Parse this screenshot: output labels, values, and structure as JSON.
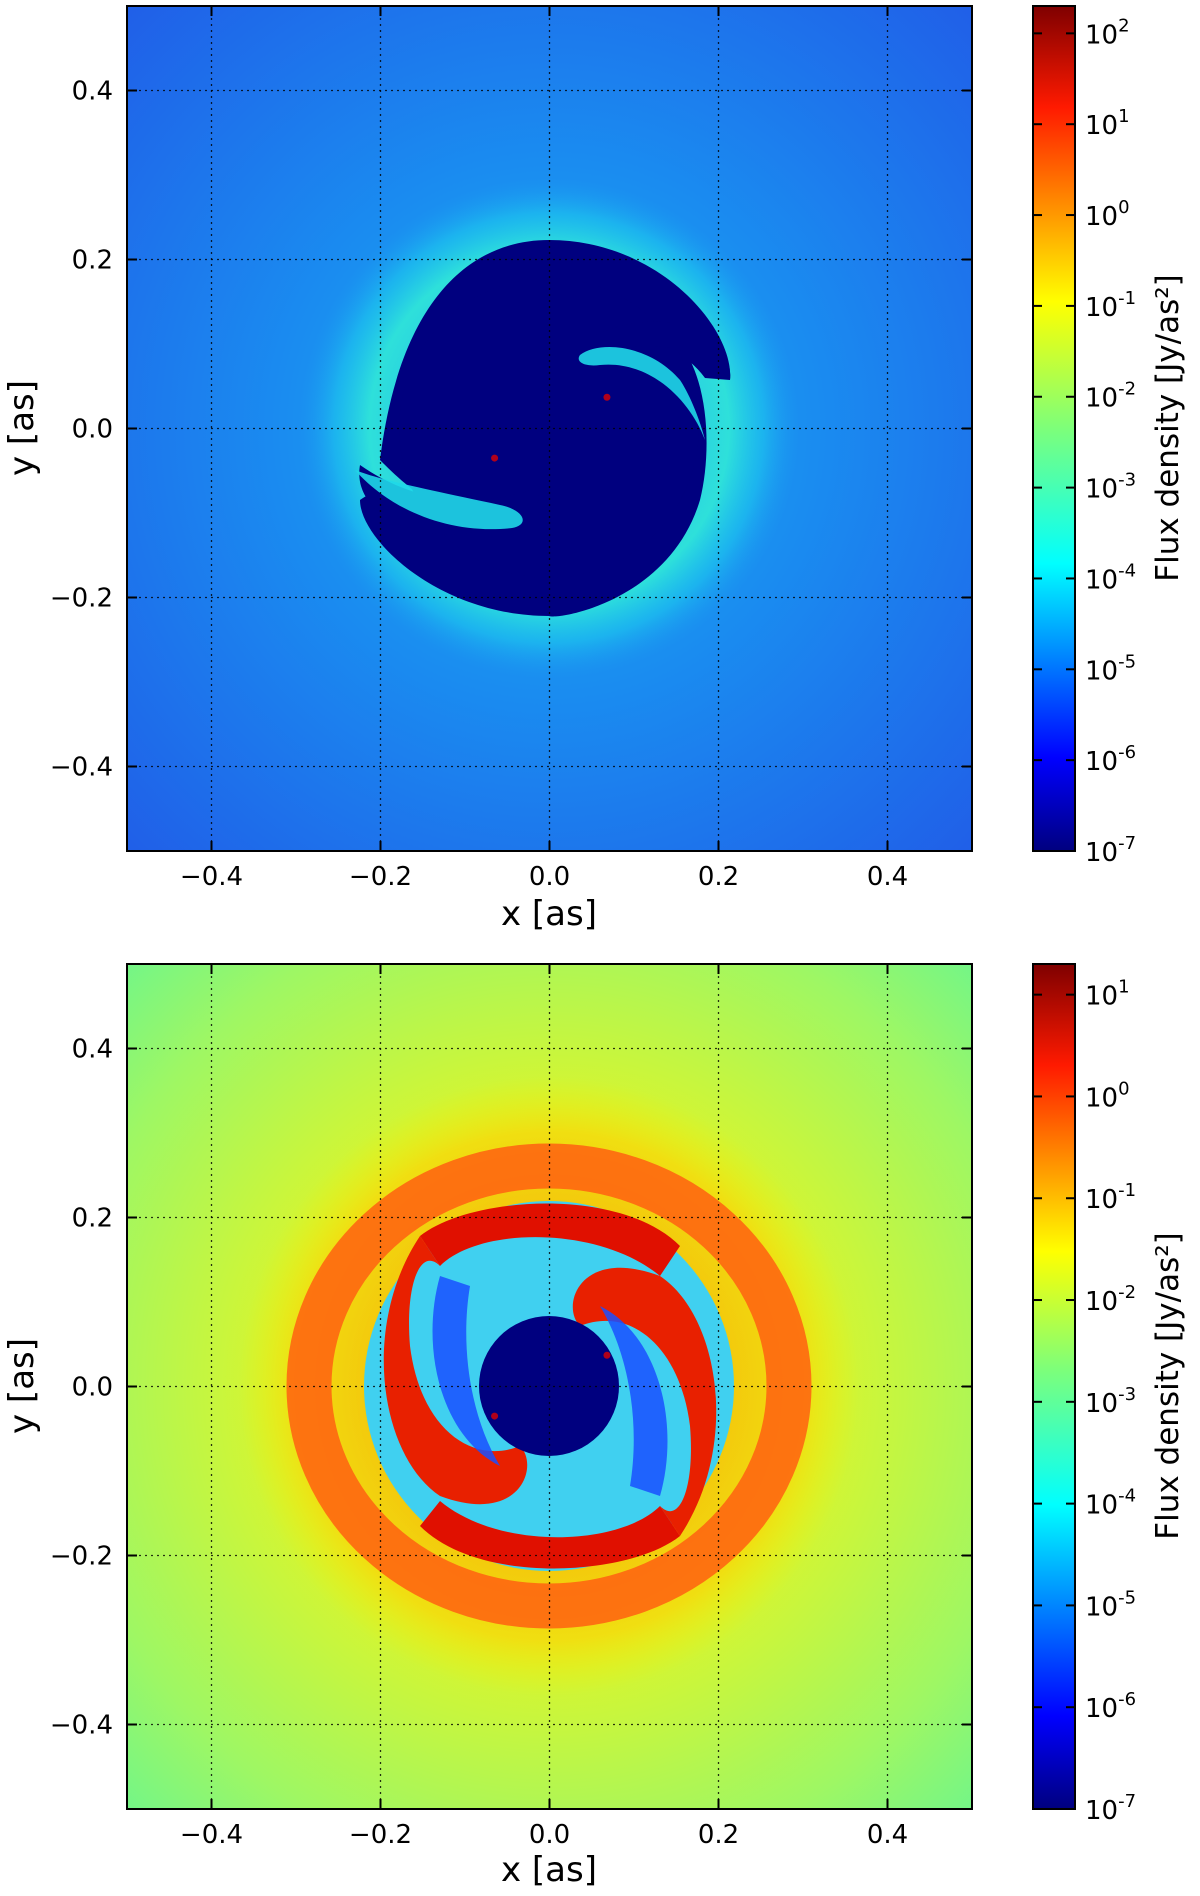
{
  "chart_data": [
    {
      "type": "heatmap",
      "xlabel": "x [as]",
      "ylabel": "y [as]",
      "xlim": [
        -0.5,
        0.5
      ],
      "ylim": [
        -0.5,
        0.5
      ],
      "xticks": [
        -0.4,
        -0.2,
        0.0,
        0.2,
        0.4
      ],
      "yticks": [
        -0.4,
        -0.2,
        0.0,
        0.2,
        0.4
      ],
      "xtick_labels": [
        "−0.4",
        "−0.2",
        "0.0",
        "0.2",
        "0.4"
      ],
      "ytick_labels": [
        "−0.4",
        "−0.2",
        "0.0",
        "0.2",
        "0.4"
      ],
      "grid": true,
      "colormap": "jet",
      "colorbar": {
        "label": "Flux density [Jy/as²]",
        "scale": "log",
        "range": [
          1e-07,
          200
        ],
        "tick_exponents": [
          -7,
          -6,
          -5,
          -4,
          -3,
          -2,
          -1,
          0,
          1,
          2
        ],
        "tick_base": "10"
      },
      "features": {
        "sources": [
          {
            "x": -0.065,
            "y": -0.035
          },
          {
            "x": 0.068,
            "y": 0.037
          }
        ],
        "central_cavity_radius": 0.22,
        "background_level": 1e-05,
        "ring_radius": 0.27,
        "ring_level": 0.0001
      }
    },
    {
      "type": "heatmap",
      "xlabel": "x [as]",
      "ylabel": "y [as]",
      "xlim": [
        -0.5,
        0.5
      ],
      "ylim": [
        -0.5,
        0.5
      ],
      "xticks": [
        -0.4,
        -0.2,
        0.0,
        0.2,
        0.4
      ],
      "yticks": [
        -0.4,
        -0.2,
        0.0,
        0.2,
        0.4
      ],
      "xtick_labels": [
        "−0.4",
        "−0.2",
        "0.0",
        "0.2",
        "0.4"
      ],
      "ytick_labels": [
        "−0.4",
        "−0.2",
        "0.0",
        "0.2",
        "0.4"
      ],
      "grid": true,
      "colormap": "jet",
      "colorbar": {
        "label": "Flux density [Jy/as²]",
        "scale": "log",
        "range": [
          1e-07,
          20
        ],
        "tick_exponents": [
          -7,
          -6,
          -5,
          -4,
          -3,
          -2,
          -1,
          0,
          1
        ],
        "tick_base": "10"
      },
      "features": {
        "sources": [
          {
            "x": -0.065,
            "y": -0.035
          },
          {
            "x": 0.068,
            "y": 0.037
          }
        ],
        "central_cavity_radius": 0.085,
        "background_level": 0.001,
        "ring_radius": 0.24,
        "ring_level": 0.1
      }
    }
  ]
}
